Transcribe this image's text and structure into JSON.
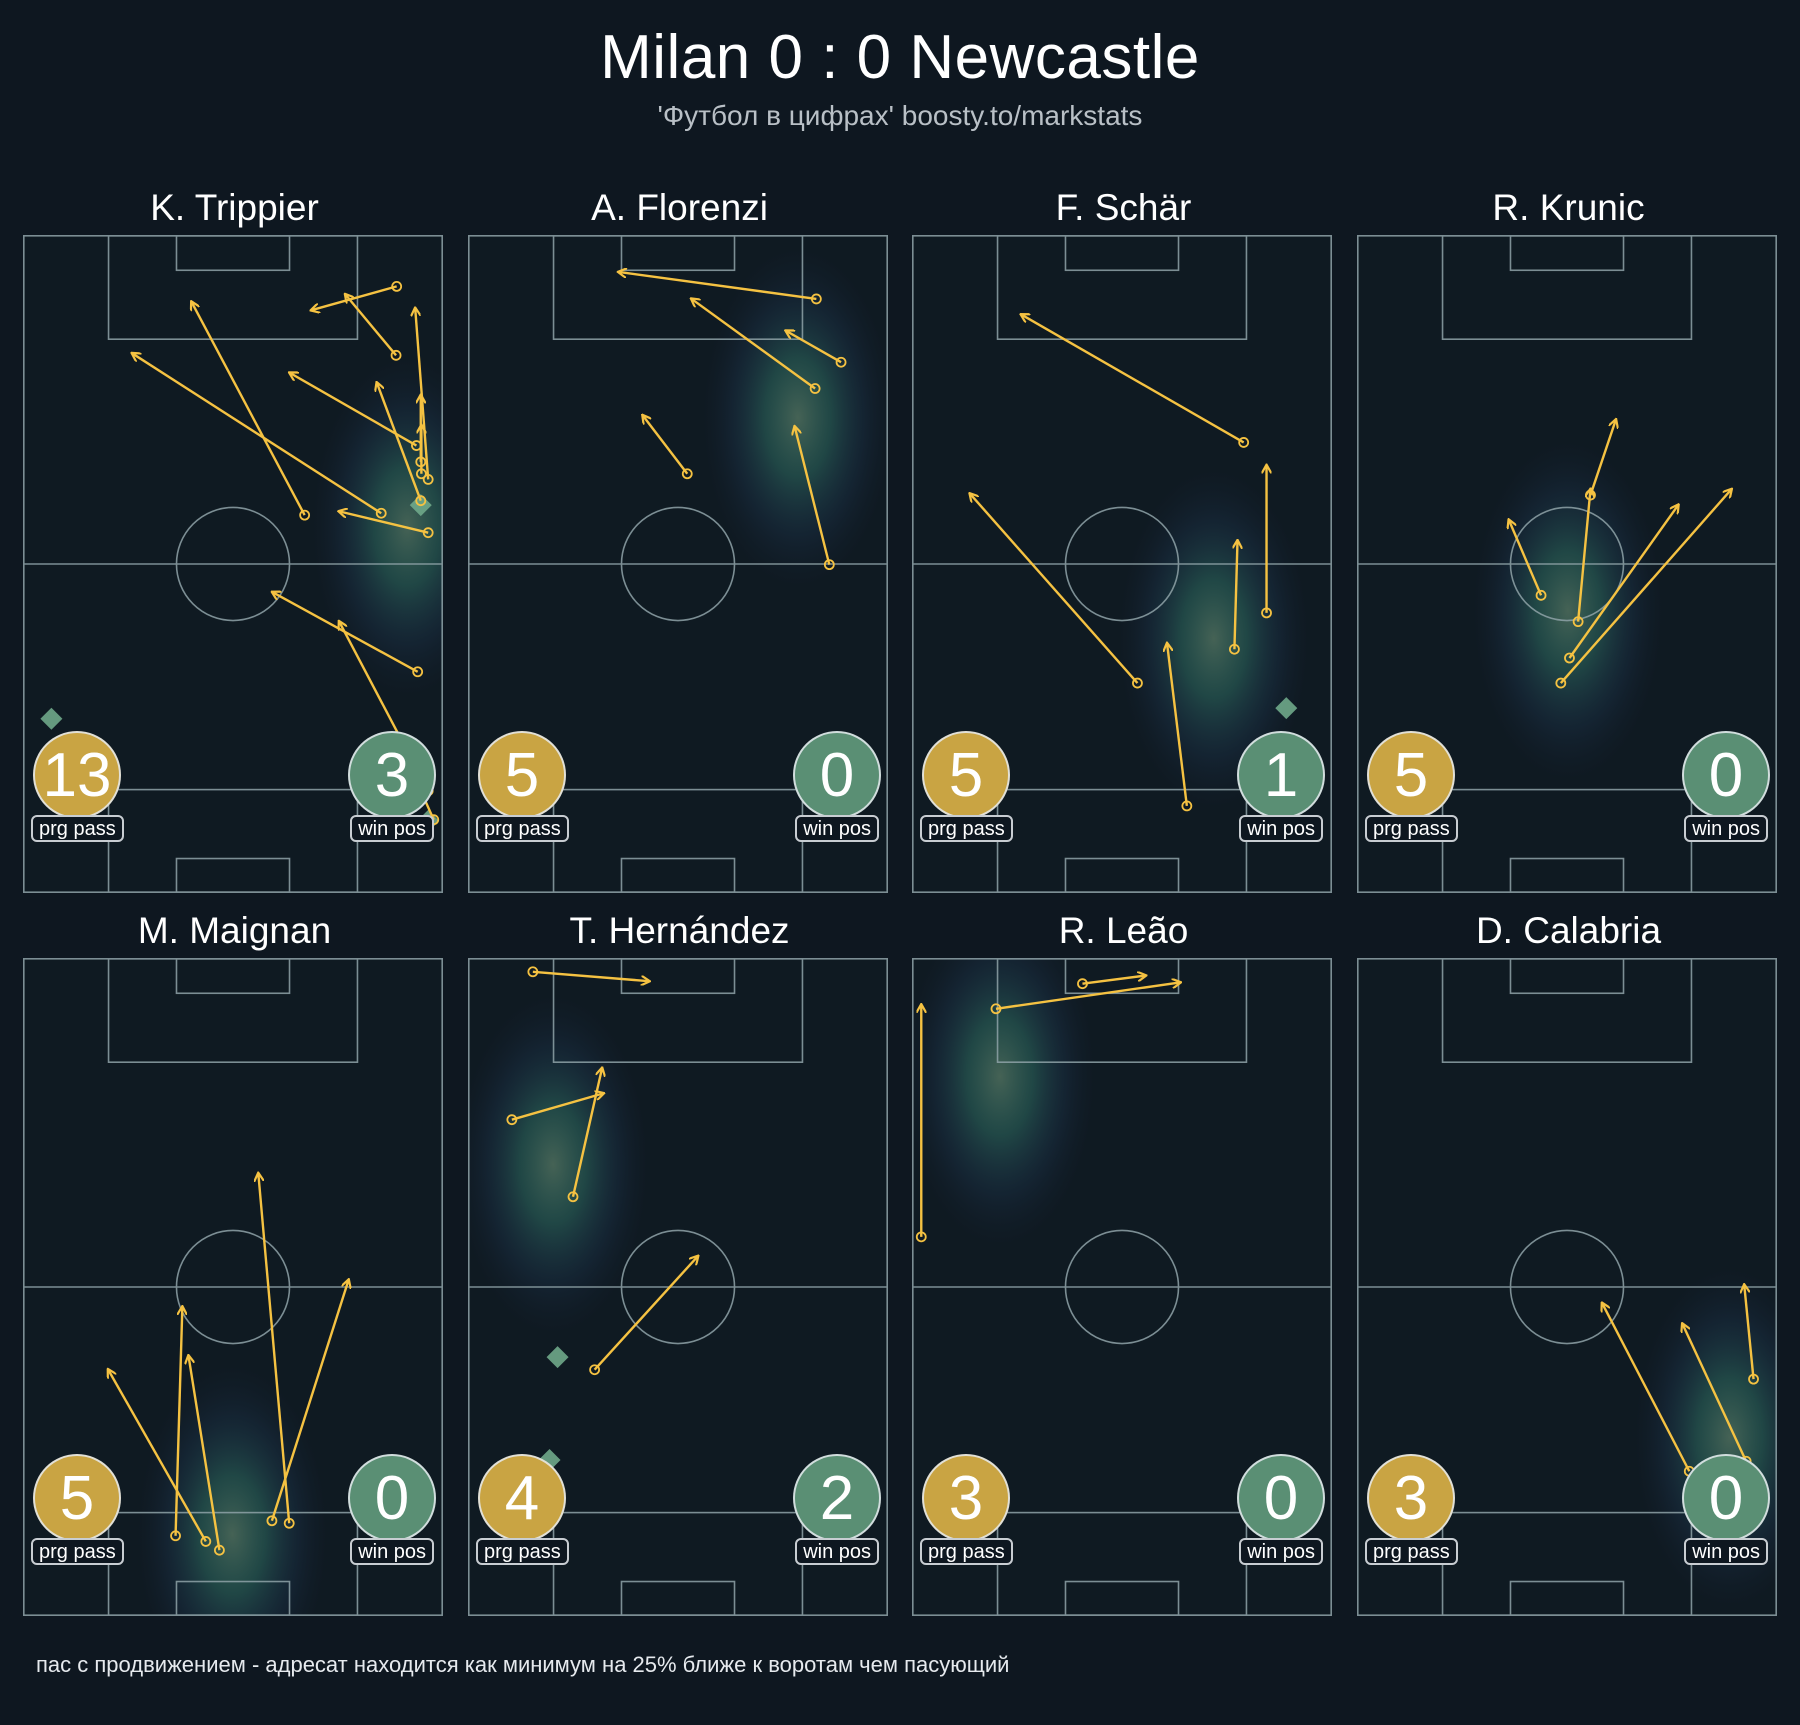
{
  "header": {
    "title": "Milan 0 : 0 Newcastle",
    "subtitle": "'Футбол в цифрах' boosty.to/markstats"
  },
  "legend": {
    "prg_label": "prg pass",
    "win_label": "win pos"
  },
  "colors": {
    "background": "#0e1720",
    "pass_arrow": "#f5c242",
    "prg_badge": "#c9a443",
    "win_badge": "#5a8f74",
    "pitch_lines": "#8fa3a8"
  },
  "footnote": "пас с продвижением - адресат находится как минимум на 25% ближе к воротам чем пасующий",
  "chart_data": {
    "type": "scatter",
    "pitch": {
      "length": 105,
      "width": 68,
      "attack_direction": "up"
    },
    "units": "pass start/end in pitch metres: x = across (0 left … 68 right), y = from own goal line (0 … 105 opponent goal)",
    "players": [
      {
        "name": "K. Trippier",
        "prg_pass": "13",
        "win_pos": "3",
        "passes": [
          {
            "start": [
              45.6,
              60.3
            ],
            "end": [
              27.3,
              94.3
            ]
          },
          {
            "start": [
              58.0,
              60.6
            ],
            "end": [
              17.7,
              86.1
            ]
          },
          {
            "start": [
              65.6,
              57.5
            ],
            "end": [
              51.2,
              60.9
            ]
          },
          {
            "start": [
              63.9,
              35.3
            ],
            "end": [
              40.4,
              48.0
            ]
          },
          {
            "start": [
              65.6,
              16.3
            ],
            "end": [
              51.2,
              43.3
            ]
          },
          {
            "start": [
              66.5,
              11.7
            ],
            "end": [
              63.5,
              18.3
            ]
          },
          {
            "start": [
              65.6,
              66.0
            ],
            "end": [
              63.5,
              93.3
            ]
          },
          {
            "start": [
              60.5,
              96.8
            ],
            "end": [
              46.7,
              93.0
            ]
          },
          {
            "start": [
              60.4,
              85.8
            ],
            "end": [
              52.2,
              95.5
            ]
          },
          {
            "start": [
              63.7,
              71.4
            ],
            "end": [
              43.2,
              83.0
            ]
          },
          {
            "start": [
              64.4,
              62.6
            ],
            "end": [
              57.3,
              81.4
            ]
          },
          {
            "start": [
              64.4,
              68.8
            ],
            "end": [
              64.4,
              79.4
            ]
          },
          {
            "start": [
              64.5,
              66.9
            ],
            "end": [
              64.5,
              74.6
            ]
          }
        ],
        "winpos": [
          [
            64.4,
            61.9
          ],
          [
            4.6,
            27.8
          ],
          [
            65.6,
            11.5
          ]
        ]
      },
      {
        "name": "A. Florenzi",
        "prg_pass": "5",
        "win_pos": "0",
        "passes": [
          {
            "start": [
              56.4,
              94.8
            ],
            "end": [
              24.4,
              99.1
            ]
          },
          {
            "start": [
              56.2,
              80.5
            ],
            "end": [
              36.2,
              94.8
            ]
          },
          {
            "start": [
              60.4,
              84.7
            ],
            "end": [
              51.5,
              89.7
            ]
          },
          {
            "start": [
              35.5,
              66.9
            ],
            "end": [
              28.3,
              76.2
            ]
          },
          {
            "start": [
              58.5,
              52.4
            ],
            "end": [
              52.9,
              74.4
            ]
          }
        ],
        "winpos": []
      },
      {
        "name": "F. Schär",
        "prg_pass": "5",
        "win_pos": "1",
        "passes": [
          {
            "start": [
              53.7,
              71.9
            ],
            "end": [
              17.7,
              92.3
            ]
          },
          {
            "start": [
              36.5,
              33.5
            ],
            "end": [
              9.4,
              63.7
            ]
          },
          {
            "start": [
              57.4,
              44.7
            ],
            "end": [
              57.4,
              68.2
            ]
          },
          {
            "start": [
              52.2,
              38.9
            ],
            "end": [
              52.7,
              56.2
            ]
          },
          {
            "start": [
              44.5,
              13.9
            ],
            "end": [
              41.3,
              39.8
            ]
          }
        ],
        "winpos": [
          [
            60.6,
            29.5
          ]
        ]
      },
      {
        "name": "R. Krunic",
        "prg_pass": "5",
        "win_pos": "0",
        "passes": [
          {
            "start": [
              29.8,
              47.5
            ],
            "end": [
              24.6,
              59.5
            ]
          },
          {
            "start": [
              35.8,
              43.3
            ],
            "end": [
              37.8,
              64.4
            ]
          },
          {
            "start": [
              34.4,
              37.5
            ],
            "end": [
              52.0,
              61.9
            ]
          },
          {
            "start": [
              33.0,
              33.5
            ],
            "end": [
              60.6,
              64.4
            ]
          },
          {
            "start": [
              37.8,
              63.5
            ],
            "end": [
              41.9,
              75.5
            ]
          }
        ],
        "winpos": []
      },
      {
        "name": "M. Maignan",
        "prg_pass": "5",
        "win_pos": "0",
        "passes": [
          {
            "start": [
              29.6,
              11.9
            ],
            "end": [
              13.8,
              39.3
            ]
          },
          {
            "start": [
              24.7,
              12.8
            ],
            "end": [
              25.8,
              49.3
            ]
          },
          {
            "start": [
              31.8,
              10.5
            ],
            "end": [
              26.8,
              41.5
            ]
          },
          {
            "start": [
              43.1,
              14.8
            ],
            "end": [
              38.1,
              70.6
            ]
          },
          {
            "start": [
              40.3,
              15.2
            ],
            "end": [
              52.7,
              53.6
            ]
          }
        ],
        "winpos": []
      },
      {
        "name": "T. Hernández",
        "prg_pass": "4",
        "win_pos": "2",
        "passes": [
          {
            "start": [
              10.5,
              102.8
            ],
            "end": [
              29.3,
              101.3
            ]
          },
          {
            "start": [
              7.1,
              79.2
            ],
            "end": [
              21.9,
              83.4
            ]
          },
          {
            "start": [
              17.0,
              66.9
            ],
            "end": [
              21.7,
              87.4
            ]
          },
          {
            "start": [
              20.5,
              39.3
            ],
            "end": [
              37.2,
              57.4
            ]
          }
        ],
        "winpos": [
          [
            14.5,
            41.3
          ],
          [
            13.2,
            24.9
          ]
        ]
      },
      {
        "name": "R. Leão",
        "prg_pass": "3",
        "win_pos": "0",
        "passes": [
          {
            "start": [
              1.5,
              60.5
            ],
            "end": [
              1.5,
              97.5
            ]
          },
          {
            "start": [
              13.6,
              96.9
            ],
            "end": [
              43.4,
              101.1
            ]
          },
          {
            "start": [
              27.6,
              100.9
            ],
            "end": [
              37.8,
              102.2
            ]
          }
        ],
        "winpos": []
      },
      {
        "name": "D. Calabria",
        "prg_pass": "3",
        "win_pos": "0",
        "passes": [
          {
            "start": [
              64.2,
              37.8
            ],
            "end": [
              62.7,
              52.8
            ]
          },
          {
            "start": [
              63.0,
              24.7
            ],
            "end": [
              52.7,
              46.6
            ]
          },
          {
            "start": [
              53.8,
              23.1
            ],
            "end": [
              39.7,
              49.9
            ]
          }
        ],
        "winpos": []
      }
    ]
  }
}
